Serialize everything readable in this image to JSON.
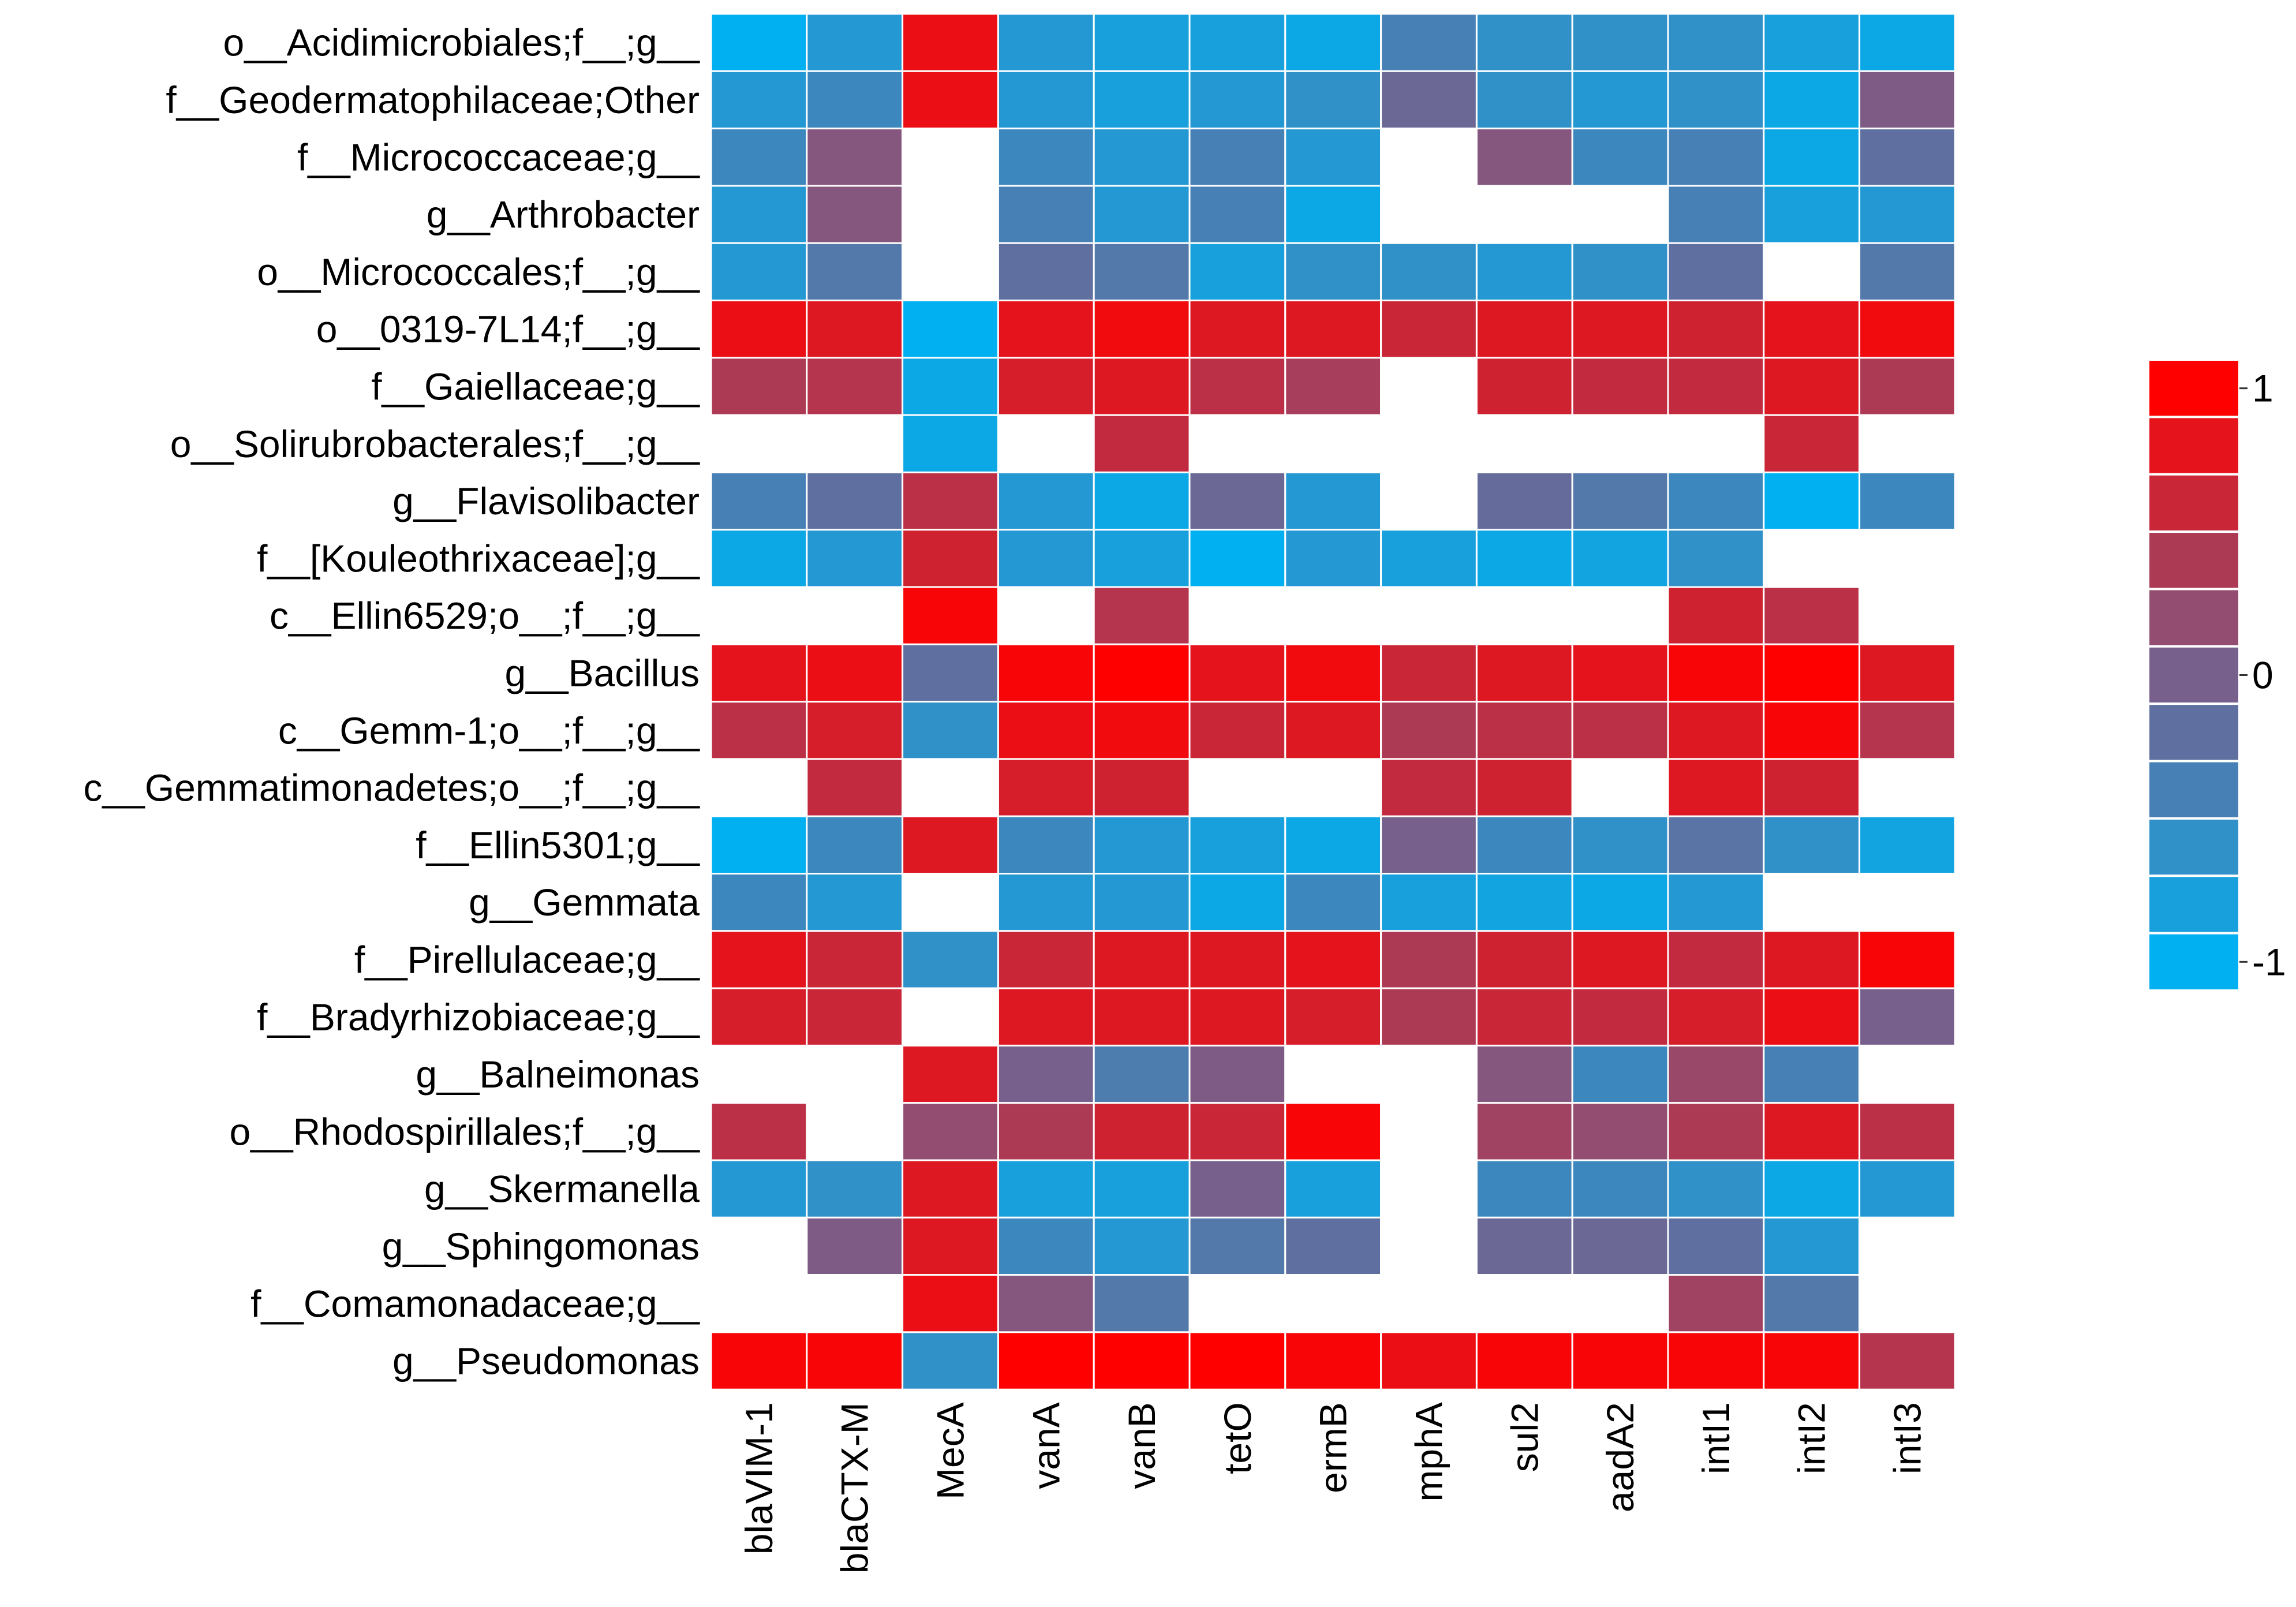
{
  "chart_data": {
    "type": "heatmap",
    "title": "",
    "xlabel": "",
    "ylabel": "",
    "columns": [
      "blaVIM-1",
      "blaCTX-M",
      "MecA",
      "vanA",
      "vanB",
      "tetO",
      "ermB",
      "mphA",
      "sul2",
      "aadA2",
      "intI1",
      "intI2",
      "intI3"
    ],
    "rows": [
      "o__Acidimicrobiales;f__;g__",
      "f__Geodermatophilaceae;Other",
      "f__Micrococcaceae;g__",
      "g__Arthrobacter",
      "o__Micrococcales;f__;g__",
      "o__0319-7L14;f__;g__",
      "f__Gaiellaceae;g__",
      "o__Solirubrobacterales;f__;g__",
      "g__Flavisolibacter",
      "f__[Kouleothrixaceae];g__",
      "c__Ellin6529;o__;f__;g__",
      "g__Bacillus",
      "c__Gemm-1;o__;f__;g__",
      "c__Gemmatimonadetes;o__;f__;g__",
      "f__Ellin5301;g__",
      "g__Gemmata",
      "f__Pirellulaceae;g__",
      "f__Bradyrhizobiaceae;g__",
      "g__Balneimonas",
      "o__Rhodospirillales;f__;g__",
      "g__Skermanella",
      "g__Sphingomonas",
      "f__Comamonadaceae;g__",
      "g__Pseudomonas"
    ],
    "values": [
      [
        -1.0,
        -0.7,
        0.85,
        -0.7,
        -0.8,
        -0.8,
        -0.9,
        -0.4,
        -0.6,
        -0.6,
        -0.6,
        -0.8,
        -0.9
      ],
      [
        -0.7,
        -0.5,
        0.85,
        -0.7,
        -0.8,
        -0.7,
        -0.6,
        -0.1,
        -0.6,
        -0.7,
        -0.6,
        -0.9,
        0.05
      ],
      [
        -0.5,
        0.1,
        null,
        -0.5,
        -0.7,
        -0.4,
        -0.7,
        null,
        0.1,
        -0.5,
        -0.4,
        -0.9,
        -0.2
      ],
      [
        -0.7,
        0.1,
        null,
        -0.4,
        -0.7,
        -0.4,
        -0.9,
        null,
        null,
        null,
        -0.4,
        -0.8,
        -0.7
      ],
      [
        -0.7,
        -0.3,
        null,
        -0.2,
        -0.3,
        -0.8,
        -0.6,
        -0.6,
        -0.7,
        -0.6,
        -0.2,
        null,
        -0.3
      ],
      [
        0.85,
        0.75,
        -1.0,
        0.8,
        0.9,
        0.75,
        0.75,
        0.6,
        0.75,
        0.75,
        0.65,
        0.8,
        0.9
      ],
      [
        0.4,
        0.45,
        -0.9,
        0.7,
        0.75,
        0.5,
        0.35,
        null,
        0.65,
        0.55,
        0.55,
        0.75,
        0.4
      ],
      [
        null,
        null,
        -0.9,
        null,
        0.55,
        null,
        null,
        null,
        null,
        null,
        null,
        0.6,
        null
      ],
      [
        -0.4,
        -0.2,
        0.5,
        -0.7,
        -0.9,
        -0.1,
        -0.7,
        null,
        -0.15,
        -0.3,
        -0.5,
        -1.0,
        -0.5
      ],
      [
        -0.9,
        -0.7,
        0.65,
        -0.7,
        -0.8,
        -1.0,
        -0.7,
        -0.8,
        -0.9,
        -0.85,
        -0.6,
        null,
        null
      ],
      [
        null,
        null,
        0.95,
        null,
        0.45,
        null,
        null,
        null,
        null,
        null,
        0.65,
        0.5,
        null
      ],
      [
        0.8,
        0.85,
        -0.2,
        0.95,
        1.0,
        0.8,
        0.9,
        0.6,
        0.75,
        0.8,
        0.95,
        1.0,
        0.75
      ],
      [
        0.5,
        0.7,
        -0.6,
        0.85,
        0.9,
        0.6,
        0.75,
        0.4,
        0.5,
        0.5,
        0.75,
        0.95,
        0.45
      ],
      [
        null,
        0.55,
        null,
        0.7,
        0.65,
        null,
        null,
        0.55,
        0.65,
        null,
        0.75,
        0.65,
        null
      ],
      [
        -1.0,
        -0.5,
        0.75,
        -0.5,
        -0.7,
        -0.8,
        -0.9,
        0.0,
        -0.5,
        -0.6,
        -0.25,
        -0.6,
        -0.85
      ],
      [
        -0.5,
        -0.7,
        null,
        -0.7,
        -0.7,
        -0.9,
        -0.5,
        -0.8,
        -0.85,
        -0.9,
        -0.7,
        null,
        null
      ],
      [
        0.8,
        0.6,
        -0.6,
        0.6,
        0.75,
        0.75,
        0.8,
        0.4,
        0.65,
        0.75,
        0.55,
        0.75,
        0.95
      ],
      [
        0.7,
        0.6,
        null,
        0.75,
        0.75,
        0.75,
        0.7,
        0.4,
        0.6,
        0.55,
        0.7,
        0.85,
        0.0
      ],
      [
        null,
        null,
        0.75,
        0.0,
        -0.35,
        0.05,
        null,
        null,
        0.1,
        -0.5,
        0.25,
        -0.4,
        null
      ],
      [
        0.5,
        null,
        0.2,
        0.4,
        0.65,
        0.6,
        0.95,
        null,
        0.3,
        0.2,
        0.4,
        0.75,
        0.5
      ],
      [
        -0.7,
        -0.6,
        0.75,
        -0.8,
        -0.8,
        0.0,
        -0.8,
        null,
        -0.5,
        -0.5,
        -0.6,
        -0.9,
        -0.7
      ],
      [
        null,
        0.05,
        0.75,
        -0.5,
        -0.7,
        -0.3,
        -0.2,
        null,
        -0.1,
        -0.1,
        -0.2,
        -0.7,
        null
      ],
      [
        null,
        null,
        0.85,
        0.1,
        -0.3,
        null,
        null,
        null,
        null,
        null,
        0.3,
        -0.3,
        null
      ],
      [
        0.95,
        0.95,
        -0.6,
        1.0,
        1.0,
        1.0,
        0.95,
        0.85,
        0.95,
        0.95,
        0.95,
        0.95,
        0.45
      ]
    ],
    "colorbar": {
      "min": -1,
      "max": 1,
      "tick_labels": [
        "1",
        "0",
        "-1"
      ],
      "tick_values": [
        1,
        0,
        -1
      ],
      "low_color": "#00B0F0",
      "mid_color": "#77608C",
      "high_color": "#FF0000"
    }
  }
}
